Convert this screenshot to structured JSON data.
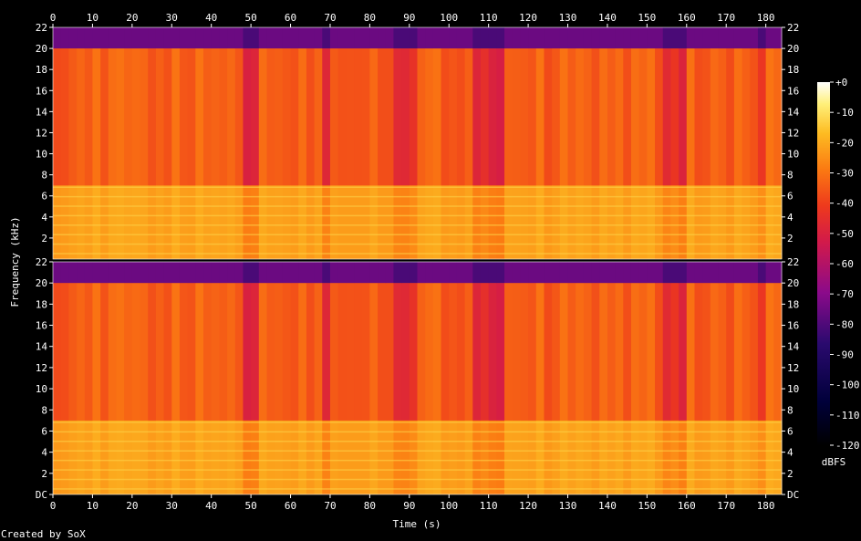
{
  "chart_data": {
    "type": "heatmap",
    "title": "",
    "xlabel": "Time (s)",
    "ylabel": "Frequency (kHz)",
    "xlim": [
      0,
      184
    ],
    "ylim": [
      0,
      22
    ],
    "x_ticks": [
      0,
      10,
      20,
      30,
      40,
      50,
      60,
      70,
      80,
      90,
      100,
      110,
      120,
      130,
      140,
      150,
      160,
      170,
      180
    ],
    "y_tick_labels": [
      "DC",
      "2",
      "4",
      "6",
      "8",
      "10",
      "12",
      "14",
      "16",
      "18",
      "20",
      "22"
    ],
    "y_tick_values": [
      0,
      2,
      4,
      6,
      8,
      10,
      12,
      14,
      16,
      18,
      20,
      22
    ],
    "channels": 2,
    "colorbar": {
      "label": "dBFS",
      "ticks": [
        0,
        -10,
        -20,
        -30,
        -40,
        -50,
        -60,
        -70,
        -80,
        -90,
        -100,
        -110,
        -120
      ],
      "tick_labels": [
        "+0",
        "-10",
        "-20",
        "-30",
        "-40",
        "-50",
        "-60",
        "-70",
        "-80",
        "-90",
        "-100",
        "-110",
        "-120"
      ],
      "range": [
        -120,
        0
      ]
    },
    "quiet_intervals_s": [
      [
        48,
        52
      ],
      [
        68,
        70
      ],
      [
        86,
        92
      ],
      [
        107,
        113
      ],
      [
        154,
        160
      ],
      [
        178,
        180
      ]
    ],
    "approx_levels_dbfs": {
      "below_7khz": -25,
      "7_to_20khz": -38,
      "7_to_20khz_quiet": -50,
      "above_20khz": -75
    }
  },
  "credit": "Created by SoX"
}
